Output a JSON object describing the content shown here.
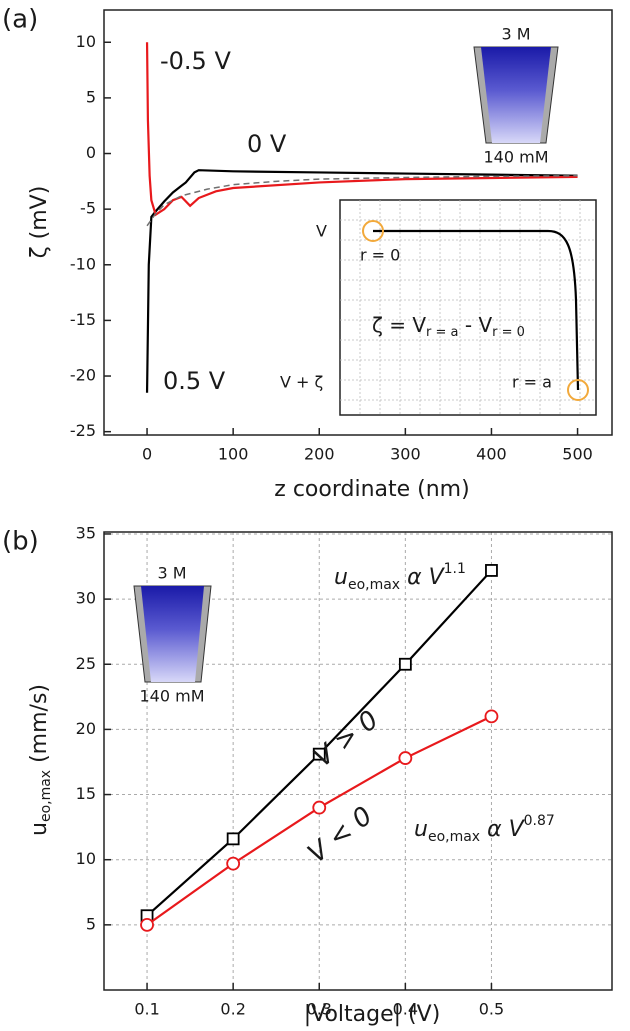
{
  "chart_data": [
    {
      "type": "line",
      "panel": "(a)",
      "x_label": "z coordinate (nm)",
      "y_label": "ζ (mV)",
      "xlim": [
        -50,
        540
      ],
      "ylim": [
        -25.3,
        12.9
      ],
      "xticks": [
        0,
        100,
        200,
        300,
        400,
        500
      ],
      "yticks": [
        10,
        5,
        0,
        -5,
        -10,
        -15,
        -20,
        -25
      ],
      "grid": false,
      "series": [
        {
          "name": "0.5 V",
          "color": "#000000",
          "dash": false,
          "x": [
            0,
            2,
            5,
            10,
            20,
            30,
            40,
            45,
            55,
            60,
            100,
            200,
            300,
            400,
            500
          ],
          "values": [
            -21.5,
            -10,
            -5.7,
            -5.2,
            -4.3,
            -3.5,
            -2.9,
            -2.6,
            -1.7,
            -1.5,
            -1.6,
            -1.7,
            -1.8,
            -1.9,
            -2.0
          ]
        },
        {
          "name": "-0.5 V",
          "color": "#e8191c",
          "dash": false,
          "x": [
            0,
            1,
            3,
            5,
            10,
            20,
            30,
            40,
            50,
            60,
            80,
            100,
            200,
            300,
            400,
            500
          ],
          "values": [
            10,
            3,
            -2,
            -4.2,
            -5.5,
            -5.0,
            -4.2,
            -3.9,
            -4.7,
            -4.0,
            -3.4,
            -3.1,
            -2.6,
            -2.3,
            -2.2,
            -2.1
          ]
        },
        {
          "name": "0 V",
          "color": "#707070",
          "dash": true,
          "x": [
            0,
            10,
            20,
            40,
            70,
            100,
            150,
            200,
            300,
            400,
            500
          ],
          "values": [
            -6.5,
            -5.4,
            -4.6,
            -3.8,
            -3.2,
            -2.8,
            -2.5,
            -2.3,
            -2.15,
            -2.05,
            -2.0
          ]
        }
      ],
      "schematic": {
        "top": "3 M",
        "bottom": "140 mM"
      },
      "inset": {
        "v": "V",
        "r0": "r = 0",
        "vz": "V + ζ",
        "ra": "r = a",
        "eq_lhs": "ζ = V",
        "eq_sub1": "r = a",
        "eq_mid": " - V",
        "eq_sub2": "r = 0"
      }
    },
    {
      "type": "line",
      "panel": "(b)",
      "x_label": "|Voltage| (V)",
      "y_label": "u",
      "y_label_sub": "eo,max",
      "y_label_unit": " (mm/s)",
      "xlim": [
        0.05,
        0.64
      ],
      "ylim": [
        0,
        35.15
      ],
      "xticks": [
        0.1,
        0.2,
        0.3,
        0.4,
        0.5
      ],
      "yticks": [
        5,
        10,
        15,
        20,
        25,
        30,
        35
      ],
      "grid": true,
      "x": [
        0.1,
        0.2,
        0.3,
        0.4,
        0.5
      ],
      "series": [
        {
          "name": "V > 0",
          "color": "#000000",
          "marker": "square",
          "values": [
            5.7,
            11.6,
            18.1,
            25.0,
            32.2
          ]
        },
        {
          "name": "V < 0",
          "color": "#e8191c",
          "marker": "circle",
          "values": [
            5.0,
            9.7,
            14.0,
            17.8,
            21.0
          ]
        }
      ],
      "schematic": {
        "top": "3 M",
        "bottom": "140 mM"
      },
      "annotations": [
        {
          "base": "u",
          "sub": "eo,max",
          "mid": " α V",
          "sup": "1.1",
          "color": "#000000"
        },
        {
          "base": "u",
          "sub": "eo,max",
          "mid": " α V",
          "sup": "0.87",
          "color": "#e8191c"
        }
      ]
    }
  ]
}
